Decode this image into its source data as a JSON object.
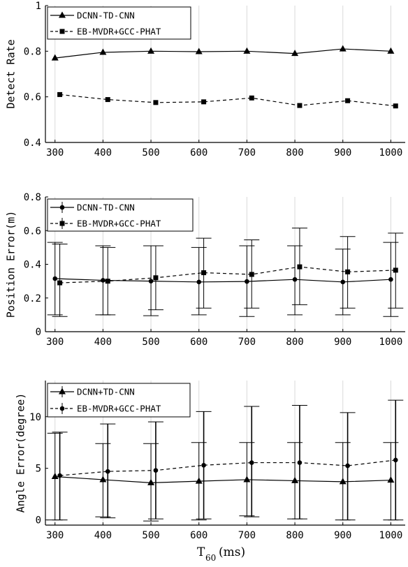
{
  "chart_data": [
    {
      "type": "line",
      "ylabel": "Detect Rate",
      "xlim": [
        280,
        1030
      ],
      "ylim": [
        0.4,
        1.0
      ],
      "yticks": [
        "0.4",
        "0.6",
        "0.8",
        "1"
      ],
      "xticks": [
        "300",
        "400",
        "500",
        "600",
        "700",
        "800",
        "900",
        "1000"
      ],
      "grid": "vertical",
      "legend_position": "top-left",
      "series": [
        {
          "name": "DCNN-TD-CNN",
          "marker": "triangle",
          "line": "solid",
          "x": [
            300,
            400,
            500,
            600,
            700,
            800,
            900,
            1000
          ],
          "values": [
            0.77,
            0.795,
            0.8,
            0.798,
            0.8,
            0.79,
            0.81,
            0.8
          ]
        },
        {
          "name": "EB-MVDR+GCC-PHAT",
          "marker": "square",
          "line": "dashed",
          "x": [
            310,
            410,
            510,
            610,
            710,
            810,
            910,
            1010
          ],
          "values": [
            0.61,
            0.588,
            0.575,
            0.578,
            0.595,
            0.562,
            0.583,
            0.56
          ]
        }
      ]
    },
    {
      "type": "line",
      "ylabel": "Position Error(m)",
      "xlim": [
        280,
        1030
      ],
      "ylim": [
        0,
        0.8
      ],
      "yticks": [
        "0",
        "0.2",
        "0.4",
        "0.6",
        "0.8"
      ],
      "xticks": [
        "300",
        "400",
        "500",
        "600",
        "700",
        "800",
        "900",
        "1000"
      ],
      "grid": "vertical",
      "legend_position": "top-left",
      "series": [
        {
          "name": "DCNN-TD-CNN",
          "marker": "circle",
          "line": "solid",
          "x": [
            300,
            400,
            500,
            600,
            700,
            800,
            900,
            1000
          ],
          "values": [
            0.315,
            0.305,
            0.3,
            0.295,
            0.298,
            0.31,
            0.295,
            0.31
          ],
          "err_low": [
            0.1,
            0.1,
            0.095,
            0.1,
            0.09,
            0.1,
            0.1,
            0.09
          ],
          "err_high": [
            0.53,
            0.51,
            0.51,
            0.5,
            0.51,
            0.51,
            0.49,
            0.53
          ]
        },
        {
          "name": "EB-MVDR+GCC-PHAT",
          "marker": "square",
          "line": "dashed",
          "x": [
            310,
            410,
            510,
            610,
            710,
            810,
            910,
            1010
          ],
          "values": [
            0.29,
            0.3,
            0.32,
            0.35,
            0.34,
            0.385,
            0.355,
            0.365
          ],
          "err_low": [
            0.09,
            0.1,
            0.13,
            0.14,
            0.14,
            0.16,
            0.14,
            0.14
          ],
          "err_high": [
            0.52,
            0.5,
            0.51,
            0.555,
            0.545,
            0.615,
            0.565,
            0.585
          ]
        }
      ]
    },
    {
      "type": "line",
      "ylabel": "Angle Error(degree)",
      "xlabel_main": "T",
      "xlabel_sub": "60",
      "xlabel_unit": "(ms)",
      "xlim": [
        280,
        1030
      ],
      "ylim": [
        -0.5,
        13.5
      ],
      "yticks": [
        "0",
        "5",
        "10"
      ],
      "ytick_values": [
        0,
        5,
        10
      ],
      "xticks": [
        "300",
        "400",
        "500",
        "600",
        "700",
        "800",
        "900",
        "1000"
      ],
      "grid": "vertical",
      "legend_position": "top-left",
      "series": [
        {
          "name": "DCNN+TD-CNN",
          "marker": "triangle",
          "line": "solid",
          "x": [
            300,
            400,
            500,
            600,
            700,
            800,
            900,
            1000
          ],
          "values": [
            4.2,
            3.9,
            3.6,
            3.75,
            3.9,
            3.8,
            3.7,
            3.85
          ],
          "err_low": [
            0,
            0.3,
            -0.1,
            0,
            0.4,
            0.1,
            0,
            0
          ],
          "err_high": [
            8.4,
            7.4,
            7.4,
            7.5,
            7.5,
            7.5,
            7.5,
            7.5
          ]
        },
        {
          "name": "EB-MVDR+GCC-PHAT",
          "marker": "circle",
          "line": "dashed",
          "x": [
            310,
            410,
            510,
            610,
            710,
            810,
            910,
            1010
          ],
          "values": [
            4.3,
            4.7,
            4.8,
            5.3,
            5.55,
            5.55,
            5.25,
            5.8
          ],
          "err_low": [
            0,
            0.2,
            0.1,
            0.1,
            0.3,
            0.1,
            0,
            0
          ],
          "err_high": [
            8.5,
            9.3,
            9.5,
            10.5,
            11.0,
            11.1,
            10.4,
            11.6
          ]
        }
      ]
    }
  ]
}
